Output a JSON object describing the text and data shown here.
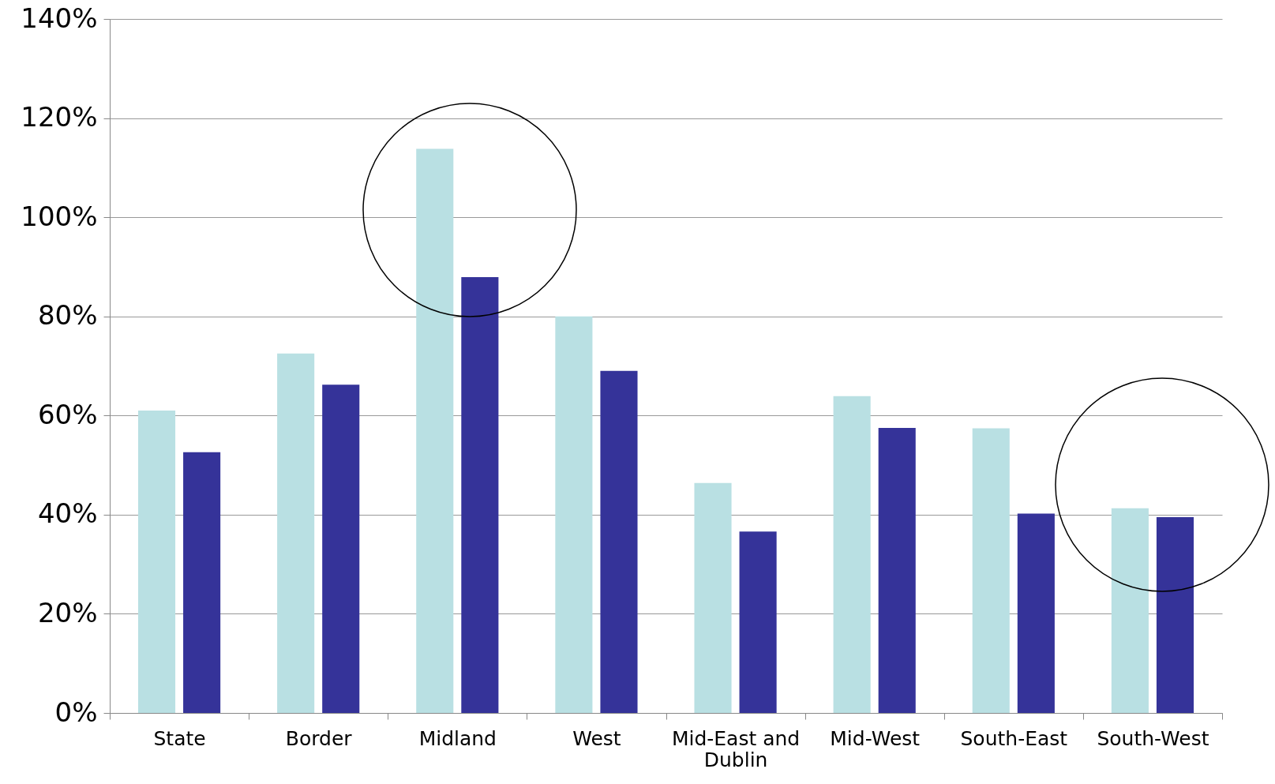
{
  "chart_data": {
    "type": "bar",
    "categories": [
      "State",
      "Border",
      "Midland",
      "West",
      "Mid-East and Dublin",
      "Mid-West",
      "South-East",
      "South-West"
    ],
    "series": [
      {
        "color": "#b9e0e3",
        "values": [
          61,
          72.5,
          113.8,
          80,
          46.4,
          63.9,
          57.4,
          41.3
        ]
      },
      {
        "color": "#353399",
        "values": [
          52.6,
          66.2,
          87.9,
          69,
          36.6,
          57.5,
          40.2,
          39.5
        ]
      }
    ],
    "ylim": [
      0,
      140
    ],
    "yticks": [
      {
        "value": 0,
        "label": "0%"
      },
      {
        "value": 20,
        "label": "20%"
      },
      {
        "value": 40,
        "label": "40%"
      },
      {
        "value": 60,
        "label": "60%"
      },
      {
        "value": 80,
        "label": "80%"
      },
      {
        "value": 100,
        "label": "100%"
      },
      {
        "value": 120,
        "label": "120%"
      },
      {
        "value": 140,
        "label": "140%"
      }
    ],
    "grid": "y"
  }
}
